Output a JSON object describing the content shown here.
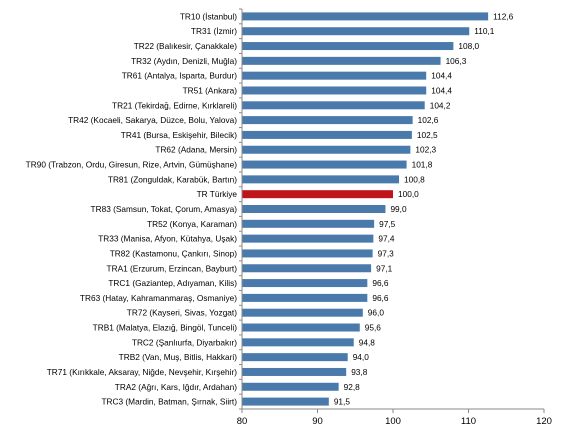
{
  "chart_data": {
    "type": "bar",
    "orientation": "horizontal",
    "title": "",
    "xlabel": "",
    "ylabel": "",
    "xlim": [
      80,
      120
    ],
    "x_ticks": [
      80,
      90,
      100,
      110,
      120
    ],
    "grid": false,
    "legend": "none",
    "colors": {
      "bar": "#4a7aab",
      "highlight": "#c0141b",
      "axis": "#8a8a8a"
    },
    "highlight_category": "TR Türkiye",
    "categories": [
      "TR10 (İstanbul)",
      "TR31 (İzmir)",
      "TR22 (Balıkesir, Çanakkale)",
      "TR32 (Aydın, Denizli, Muğla)",
      "TR61 (Antalya, Isparta, Burdur)",
      "TR51 (Ankara)",
      "TR21 (Tekirdağ, Edirne, Kırklareli)",
      "TR42 (Kocaeli, Sakarya, Düzce, Bolu, Yalova)",
      "TR41 (Bursa, Eskişehir, Bilecik)",
      "TR62 (Adana, Mersin)",
      "TR90 (Trabzon, Ordu, Giresun, Rize, Artvin, Gümüşhane)",
      "TR81 (Zonguldak, Karabük, Bartın)",
      "TR Türkiye",
      "TR83 (Samsun, Tokat, Çorum, Amasya)",
      "TR52 (Konya, Karaman)",
      "TR33 (Manisa, Afyon, Kütahya, Uşak)",
      "TR82 (Kastamonu, Çankırı, Sinop)",
      "TRA1 (Erzurum, Erzincan, Bayburt)",
      "TRC1 (Gaziantep, Adıyaman, Kilis)",
      "TR63 (Hatay, Kahramanmaraş, Osmaniye)",
      "TR72 (Kayseri, Sivas, Yozgat)",
      "TRB1 (Malatya, Elazığ, Bingöl, Tunceli)",
      "TRC2 (Şanlıurfa, Diyarbakır)",
      "TRB2 (Van, Muş, Bitlis, Hakkari)",
      "TR71 (Kırıkkale, Aksaray, Niğde, Nevşehir, Kırşehir)",
      "TRA2 (Ağrı, Kars, Iğdır, Ardahan)",
      "TRC3 (Mardin, Batman, Şırnak, Siirt)"
    ],
    "values": [
      112.6,
      110.1,
      108.0,
      106.3,
      104.4,
      104.4,
      104.2,
      102.6,
      102.5,
      102.3,
      101.8,
      100.8,
      100.0,
      99.0,
      97.5,
      97.4,
      97.3,
      97.1,
      96.6,
      96.6,
      96.0,
      95.6,
      94.8,
      94.0,
      93.8,
      92.8,
      91.5
    ],
    "value_labels": [
      "112,6",
      "110,1",
      "108,0",
      "106,3",
      "104,4",
      "104,4",
      "104,2",
      "102,6",
      "102,5",
      "102,3",
      "101,8",
      "100,8",
      "100,0",
      "99,0",
      "97,5",
      "97,4",
      "97,3",
      "97,1",
      "96,6",
      "96,6",
      "96,0",
      "95,6",
      "94,8",
      "94,0",
      "93,8",
      "92,8",
      "91,5"
    ]
  }
}
